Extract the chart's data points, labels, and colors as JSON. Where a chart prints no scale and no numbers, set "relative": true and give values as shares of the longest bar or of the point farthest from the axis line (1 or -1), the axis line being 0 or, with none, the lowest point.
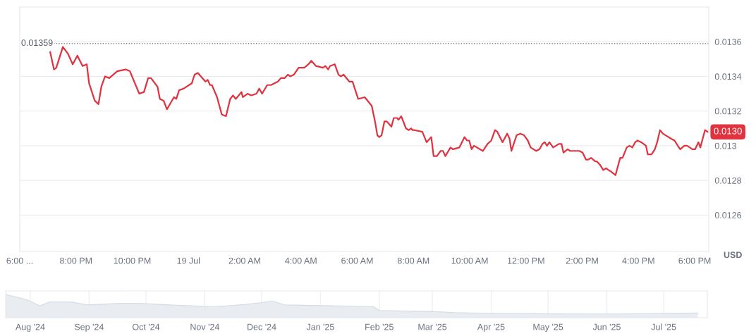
{
  "chart_data": [
    {
      "type": "line",
      "ylabel": "USD",
      "grid": "y",
      "legend": false,
      "marker": "none",
      "line_style": "solid",
      "xlim": [
        "2025-07-18T18:00",
        "2025-07-19T18:30"
      ],
      "ylim": [
        0.01239,
        0.0138
      ],
      "xticks": [
        {
          "value": "2025-07-18T18:00",
          "label": "6:00 ..."
        },
        {
          "value": "2025-07-18T20:00",
          "label": "8:00 PM"
        },
        {
          "value": "2025-07-18T22:00",
          "label": "10:00 PM"
        },
        {
          "value": "2025-07-19T00:00",
          "label": "19 Jul"
        },
        {
          "value": "2025-07-19T02:00",
          "label": "2:00 AM"
        },
        {
          "value": "2025-07-19T04:00",
          "label": "4:00 AM"
        },
        {
          "value": "2025-07-19T06:00",
          "label": "6:00 AM"
        },
        {
          "value": "2025-07-19T08:00",
          "label": "8:00 AM"
        },
        {
          "value": "2025-07-19T10:00",
          "label": "10:00 AM"
        },
        {
          "value": "2025-07-19T12:00",
          "label": "12:00 PM"
        },
        {
          "value": "2025-07-19T14:00",
          "label": "2:00 PM"
        },
        {
          "value": "2025-07-19T16:00",
          "label": "4:00 PM"
        },
        {
          "value": "2025-07-19T18:00",
          "label": "6:00 PM"
        }
      ],
      "yticks": [
        0.0126,
        0.0128,
        0.013,
        0.0132,
        0.0134,
        0.0136
      ],
      "ref_lines": [
        {
          "axis": "y",
          "value": 0.01359,
          "label": "0.01359",
          "color": "#888888",
          "line_style": "dotted"
        }
      ],
      "annotations": [
        {
          "text": "0.0130",
          "x": "2025-07-19T18:28",
          "y": 0.01308
        }
      ],
      "series": [
        {
          "color": "#e03340",
          "x": [
            "2025-07-18T19:05",
            "2025-07-18T19:13",
            "2025-07-18T19:18",
            "2025-07-18T19:32",
            "2025-07-18T19:43",
            "2025-07-18T19:53",
            "2025-07-18T20:03",
            "2025-07-18T20:14",
            "2025-07-18T20:23",
            "2025-07-18T20:28",
            "2025-07-18T20:40",
            "2025-07-18T20:48",
            "2025-07-18T20:54",
            "2025-07-18T21:02",
            "2025-07-18T21:11",
            "2025-07-18T21:28",
            "2025-07-18T21:46",
            "2025-07-18T21:55",
            "2025-07-18T22:15",
            "2025-07-18T22:25",
            "2025-07-18T22:34",
            "2025-07-18T22:40",
            "2025-07-18T22:54",
            "2025-07-18T22:59",
            "2025-07-18T23:07",
            "2025-07-18T23:14",
            "2025-07-18T23:29",
            "2025-07-18T23:34",
            "2025-07-18T23:40",
            "2025-07-18T23:50",
            "2025-07-19T00:07",
            "2025-07-19T00:13",
            "2025-07-19T00:20",
            "2025-07-19T00:36",
            "2025-07-19T00:41",
            "2025-07-19T00:46",
            "2025-07-19T00:50",
            "2025-07-19T01:01",
            "2025-07-19T01:11",
            "2025-07-19T01:20",
            "2025-07-19T01:29",
            "2025-07-19T01:35",
            "2025-07-19T01:41",
            "2025-07-19T01:53",
            "2025-07-19T01:56",
            "2025-07-19T02:06",
            "2025-07-19T02:14",
            "2025-07-19T02:25",
            "2025-07-19T02:31",
            "2025-07-19T02:37",
            "2025-07-19T02:48",
            "2025-07-19T02:56",
            "2025-07-19T03:11",
            "2025-07-19T03:17",
            "2025-07-19T03:25",
            "2025-07-19T03:32",
            "2025-07-19T03:37",
            "2025-07-19T03:45",
            "2025-07-19T03:55",
            "2025-07-19T04:07",
            "2025-07-19T04:16",
            "2025-07-19T04:22",
            "2025-07-19T04:32",
            "2025-07-19T04:47",
            "2025-07-19T04:52",
            "2025-07-19T04:58",
            "2025-07-19T05:02",
            "2025-07-19T05:12",
            "2025-07-19T05:20",
            "2025-07-19T05:25",
            "2025-07-19T05:31",
            "2025-07-19T05:43",
            "2025-07-19T05:50",
            "2025-07-19T06:02",
            "2025-07-19T06:16",
            "2025-07-19T06:31",
            "2025-07-19T06:38",
            "2025-07-19T06:43",
            "2025-07-19T06:47",
            "2025-07-19T06:52",
            "2025-07-19T06:58",
            "2025-07-19T07:03",
            "2025-07-19T07:13",
            "2025-07-19T07:18",
            "2025-07-19T07:25",
            "2025-07-19T07:28",
            "2025-07-19T07:34",
            "2025-07-19T07:44",
            "2025-07-19T07:50",
            "2025-07-19T07:55",
            "2025-07-19T07:58",
            "2025-07-19T08:02",
            "2025-07-19T08:19",
            "2025-07-19T08:28",
            "2025-07-19T08:38",
            "2025-07-19T08:43",
            "2025-07-19T08:50",
            "2025-07-19T08:58",
            "2025-07-19T09:03",
            "2025-07-19T09:08",
            "2025-07-19T09:19",
            "2025-07-19T09:24",
            "2025-07-19T09:38",
            "2025-07-19T09:49",
            "2025-07-19T09:54",
            "2025-07-19T09:59",
            "2025-07-19T10:04",
            "2025-07-19T10:09",
            "2025-07-19T10:28",
            "2025-07-19T10:38",
            "2025-07-19T10:46",
            "2025-07-19T10:54",
            "2025-07-19T10:59",
            "2025-07-19T11:10",
            "2025-07-19T11:20",
            "2025-07-19T11:25",
            "2025-07-19T11:29",
            "2025-07-19T11:40",
            "2025-07-19T11:48",
            "2025-07-19T11:56",
            "2025-07-19T12:04",
            "2025-07-19T12:10",
            "2025-07-19T12:22",
            "2025-07-19T12:29",
            "2025-07-19T12:35",
            "2025-07-19T12:40",
            "2025-07-19T12:45",
            "2025-07-19T12:50",
            "2025-07-19T12:58",
            "2025-07-19T13:10",
            "2025-07-19T13:16",
            "2025-07-19T13:20",
            "2025-07-19T13:29",
            "2025-07-19T13:34",
            "2025-07-19T13:54",
            "2025-07-19T14:01",
            "2025-07-19T14:08",
            "2025-07-19T14:13",
            "2025-07-19T14:19",
            "2025-07-19T14:28",
            "2025-07-19T14:31",
            "2025-07-19T14:38",
            "2025-07-19T14:45",
            "2025-07-19T14:51",
            "2025-07-19T14:56",
            "2025-07-19T15:02",
            "2025-07-19T15:11",
            "2025-07-19T15:21",
            "2025-07-19T15:26",
            "2025-07-19T15:35",
            "2025-07-19T15:41",
            "2025-07-19T15:47",
            "2025-07-19T15:53",
            "2025-07-19T15:58",
            "2025-07-19T16:06",
            "2025-07-19T16:16",
            "2025-07-19T16:20",
            "2025-07-19T16:28",
            "2025-07-19T16:35",
            "2025-07-19T16:40",
            "2025-07-19T16:46",
            "2025-07-19T16:52",
            "2025-07-19T16:58",
            "2025-07-19T17:10",
            "2025-07-19T17:17",
            "2025-07-19T17:24",
            "2025-07-19T17:29",
            "2025-07-19T17:38",
            "2025-07-19T17:44",
            "2025-07-19T17:55",
            "2025-07-19T18:01",
            "2025-07-19T18:08",
            "2025-07-19T18:12",
            "2025-07-19T18:22",
            "2025-07-19T18:28"
          ],
          "values": [
            0.01354,
            0.01344,
            0.01345,
            0.01357,
            0.01353,
            0.01347,
            0.01352,
            0.01346,
            0.01347,
            0.01336,
            0.01326,
            0.01324,
            0.01334,
            0.0134,
            0.01339,
            0.01343,
            0.01344,
            0.01343,
            0.0133,
            0.01331,
            0.01339,
            0.01339,
            0.01334,
            0.01327,
            0.01326,
            0.01321,
            0.01328,
            0.01327,
            0.01332,
            0.01333,
            0.01336,
            0.01341,
            0.01342,
            0.01337,
            0.01338,
            0.01335,
            0.01335,
            0.01328,
            0.01318,
            0.01317,
            0.01327,
            0.01329,
            0.01327,
            0.01331,
            0.01328,
            0.0133,
            0.01329,
            0.0133,
            0.01333,
            0.0133,
            0.01335,
            0.01335,
            0.01337,
            0.01339,
            0.01339,
            0.01341,
            0.0134,
            0.01341,
            0.01345,
            0.01345,
            0.01347,
            0.01349,
            0.01346,
            0.01345,
            0.01346,
            0.01344,
            0.01346,
            0.01347,
            0.01341,
            0.0134,
            0.01341,
            0.01337,
            0.01337,
            0.01327,
            0.01328,
            0.01323,
            0.01314,
            0.01306,
            0.01305,
            0.01306,
            0.01314,
            0.01314,
            0.01311,
            0.01316,
            0.01316,
            0.01315,
            0.01317,
            0.0131,
            0.01309,
            0.0131,
            0.01309,
            0.01309,
            0.01308,
            0.01302,
            0.01305,
            0.01294,
            0.01294,
            0.01297,
            0.01297,
            0.01294,
            0.01299,
            0.01298,
            0.01299,
            0.01305,
            0.01303,
            0.01303,
            0.01298,
            0.013,
            0.01297,
            0.01301,
            0.01303,
            0.01309,
            0.01308,
            0.01302,
            0.01307,
            0.01304,
            0.01297,
            0.01306,
            0.01307,
            0.01306,
            0.01303,
            0.01299,
            0.01297,
            0.01298,
            0.01301,
            0.01302,
            0.013,
            0.01302,
            0.01299,
            0.01301,
            0.01301,
            0.01296,
            0.01298,
            0.01297,
            0.01297,
            0.01296,
            0.01292,
            0.01292,
            0.01293,
            0.01291,
            0.01291,
            0.01289,
            0.01286,
            0.01287,
            0.01286,
            0.01285,
            0.01283,
            0.01293,
            0.01293,
            0.01299,
            0.013,
            0.01299,
            0.01302,
            0.01303,
            0.01302,
            0.013,
            0.01295,
            0.01295,
            0.01298,
            0.01302,
            0.01309,
            0.01307,
            0.01306,
            0.01304,
            0.01303,
            0.013,
            0.01298,
            0.013,
            0.013,
            0.01298,
            0.01298,
            0.01302,
            0.01299,
            0.01309,
            0.01308
          ]
        }
      ]
    },
    {
      "type": "area",
      "relative": true,
      "grid": "x",
      "legend": false,
      "xlim": [
        "2024-07-19",
        "2025-07-24"
      ],
      "xticks": [
        {
          "value": "2024-08-01",
          "label": "Aug '24"
        },
        {
          "value": "2024-09-01",
          "label": "Sep '24"
        },
        {
          "value": "2024-10-01",
          "label": "Oct '24"
        },
        {
          "value": "2024-11-01",
          "label": "Nov '24"
        },
        {
          "value": "2024-12-01",
          "label": "Dec '24"
        },
        {
          "value": "2025-01-01",
          "label": "Jan '25"
        },
        {
          "value": "2025-02-01",
          "label": "Feb '25"
        },
        {
          "value": "2025-03-01",
          "label": "Mar '25"
        },
        {
          "value": "2025-04-01",
          "label": "Apr '25"
        },
        {
          "value": "2025-05-01",
          "label": "May '25"
        },
        {
          "value": "2025-06-01",
          "label": "Jun '25"
        },
        {
          "value": "2025-07-01",
          "label": "Jul '25"
        }
      ],
      "series": [
        {
          "color": "#e9edf1",
          "x": [
            "2024-07-19",
            "2024-07-26",
            "2024-07-31",
            "2024-08-06",
            "2024-08-11",
            "2024-08-23",
            "2024-08-31",
            "2024-09-16",
            "2024-09-29",
            "2024-10-13",
            "2024-11-06",
            "2024-11-23",
            "2024-12-07",
            "2024-12-13",
            "2025-01-07",
            "2025-01-29",
            "2025-02-01",
            "2025-02-27",
            "2025-03-13",
            "2025-04-05",
            "2025-05-12",
            "2025-06-07",
            "2025-07-19"
          ],
          "values": [
            1,
            0.86,
            0.75,
            0.51,
            0.67,
            0.67,
            0.55,
            0.61,
            0.61,
            0.55,
            0.47,
            0.57,
            0.71,
            0.55,
            0.51,
            0.47,
            0.31,
            0.27,
            0.22,
            0.18,
            0.16,
            0.16,
            0.2
          ]
        }
      ]
    }
  ]
}
